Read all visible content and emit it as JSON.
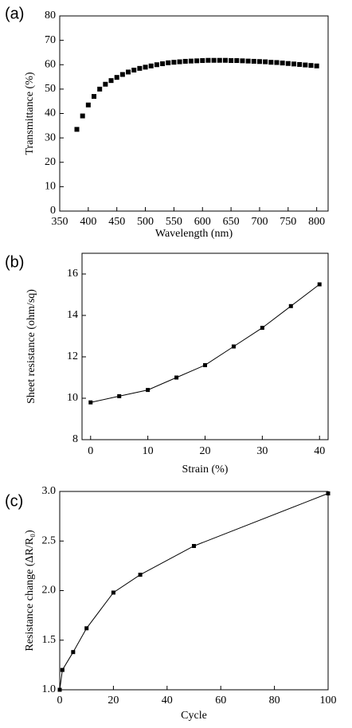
{
  "chart_data": [
    {
      "type": "scatter",
      "panel_label": "(a)",
      "x_label": "Wavelength (nm)",
      "y_label": "Transmittance (%)",
      "color": "#000000",
      "x": [
        380,
        390,
        400,
        410,
        420,
        430,
        440,
        450,
        460,
        470,
        480,
        490,
        500,
        510,
        520,
        530,
        540,
        550,
        560,
        570,
        580,
        590,
        600,
        610,
        620,
        630,
        640,
        650,
        660,
        670,
        680,
        690,
        700,
        710,
        720,
        730,
        740,
        750,
        760,
        770,
        780,
        790,
        800
      ],
      "values": [
        33.5,
        39,
        43.5,
        47,
        50,
        52,
        53.5,
        54.8,
        56,
        57,
        57.8,
        58.5,
        59,
        59.5,
        60,
        60.4,
        60.8,
        61,
        61.2,
        61.4,
        61.5,
        61.6,
        61.7,
        61.8,
        61.8,
        61.8,
        61.8,
        61.7,
        61.7,
        61.6,
        61.5,
        61.4,
        61.3,
        61.2,
        61,
        60.9,
        60.7,
        60.5,
        60.3,
        60.1,
        59.9,
        59.7,
        59.5
      ],
      "xlim": [
        350,
        820
      ],
      "ylim": [
        0,
        80
      ],
      "xticks": [
        350,
        400,
        450,
        500,
        550,
        600,
        650,
        700,
        750,
        800
      ],
      "yticks": [
        0,
        10,
        20,
        30,
        40,
        50,
        60,
        70,
        80
      ]
    },
    {
      "type": "line",
      "panel_label": "(b)",
      "x_label": "Strain (%)",
      "y_label": "Sheet resistance (ohm/sq)",
      "color": "#000000",
      "x": [
        0,
        5,
        10,
        15,
        20,
        25,
        30,
        35,
        40
      ],
      "values": [
        9.8,
        10.1,
        10.4,
        11.0,
        11.6,
        12.5,
        13.4,
        14.45,
        15.5
      ],
      "xlim": [
        -1.5,
        41.5
      ],
      "ylim": [
        8,
        17
      ],
      "xticks": [
        0,
        10,
        20,
        30,
        40
      ],
      "yticks": [
        8,
        10,
        12,
        14,
        16
      ]
    },
    {
      "type": "line",
      "panel_label": "(c)",
      "x_label": "Cycle",
      "y_label": "Resistance change (ΔR/R₀)",
      "color": "#000000",
      "x": [
        0,
        1,
        5,
        10,
        20,
        30,
        50,
        100
      ],
      "values": [
        1.0,
        1.2,
        1.38,
        1.62,
        1.98,
        2.16,
        2.45,
        2.98
      ],
      "xlim": [
        0,
        100
      ],
      "ylim": [
        1.0,
        3.0
      ],
      "xticks": [
        0,
        20,
        40,
        60,
        80,
        100
      ],
      "yticks": [
        {
          "value": 1.0,
          "label": "1.0"
        },
        1.5,
        {
          "value": 2.0,
          "label": "2.0"
        },
        2.5,
        {
          "value": 3.0,
          "label": "3.0"
        }
      ]
    }
  ]
}
